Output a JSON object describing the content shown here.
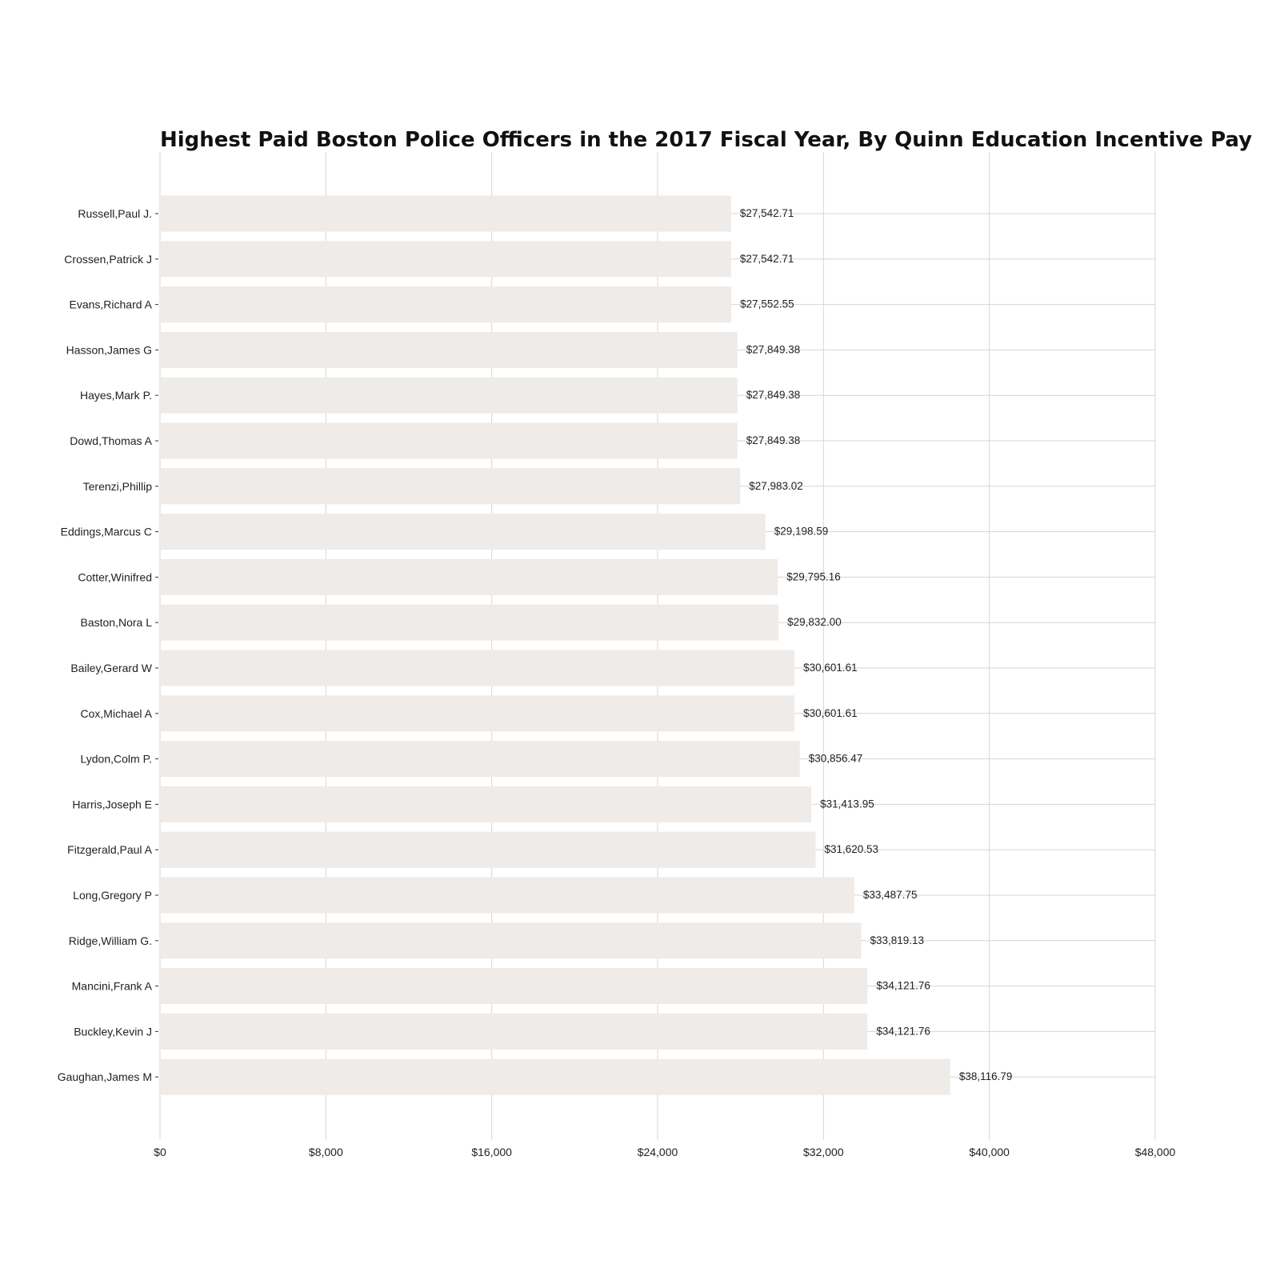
{
  "chart_data": {
    "type": "bar",
    "orientation": "horizontal",
    "title": "Highest Paid Boston Police Officers in the 2017 Fiscal Year, By Quinn Education Incentive Pay",
    "xlabel": "",
    "ylabel": "",
    "xlim": [
      0,
      48000
    ],
    "x_ticks": [
      0,
      8000,
      16000,
      24000,
      32000,
      40000,
      48000
    ],
    "x_tick_labels": [
      "$0",
      "$8,000",
      "$16,000",
      "$24,000",
      "$32,000",
      "$40,000",
      "$48,000"
    ],
    "grid": true,
    "bar_color": "#eeebe8",
    "grid_color": "#d6d6d6",
    "categories": [
      "Russell,Paul J.",
      "Crossen,Patrick J",
      "Evans,Richard A",
      "Hasson,James G",
      "Hayes,Mark P.",
      "Dowd,Thomas A",
      "Terenzi,Phillip",
      "Eddings,Marcus C",
      "Cotter,Winifred",
      "Baston,Nora L",
      "Bailey,Gerard W",
      "Cox,Michael A",
      "Lydon,Colm P.",
      "Harris,Joseph E",
      "Fitzgerald,Paul A",
      "Long,Gregory P",
      "Ridge,William G.",
      "Mancini,Frank A",
      "Buckley,Kevin J",
      "Gaughan,James M"
    ],
    "values": [
      27542.71,
      27542.71,
      27552.55,
      27849.38,
      27849.38,
      27849.38,
      27983.02,
      29198.59,
      29795.16,
      29832.0,
      30601.61,
      30601.61,
      30856.47,
      31413.95,
      31620.53,
      33487.75,
      33819.13,
      34121.76,
      34121.76,
      38116.79
    ],
    "value_labels": [
      "$27,542.71",
      "$27,542.71",
      "$27,552.55",
      "$27,849.38",
      "$27,849.38",
      "$27,849.38",
      "$27,983.02",
      "$29,198.59",
      "$29,795.16",
      "$29,832.00",
      "$30,601.61",
      "$30,601.61",
      "$30,856.47",
      "$31,413.95",
      "$31,620.53",
      "$33,487.75",
      "$33,819.13",
      "$34,121.76",
      "$34,121.76",
      "$38,116.79"
    ]
  }
}
